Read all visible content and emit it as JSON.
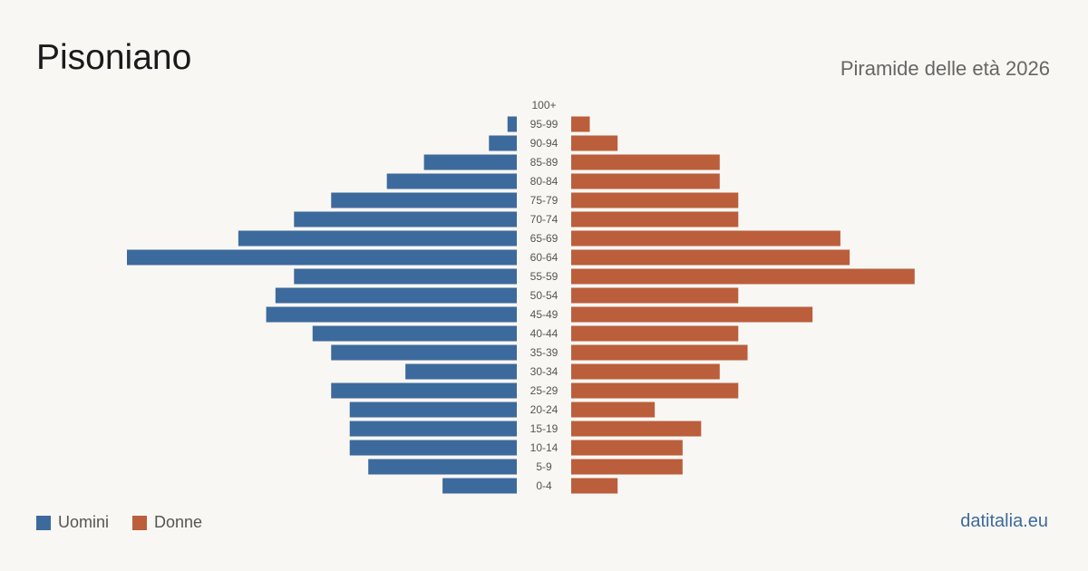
{
  "header": {
    "title": "Pisoniano",
    "subtitle": "Piramide delle età 2026"
  },
  "legend": {
    "men_label": "Uomini",
    "women_label": "Donne"
  },
  "footer": {
    "source": "datitalia.eu"
  },
  "colors": {
    "men": "#3d6a9c",
    "women": "#bb5e3c",
    "source": "#3d6a9c"
  },
  "chart_data": {
    "type": "bar",
    "orientation": "horizontal-pyramid",
    "title": "Piramide delle età 2026",
    "categories": [
      "100+",
      "95-99",
      "90-94",
      "85-89",
      "80-84",
      "75-79",
      "70-74",
      "65-69",
      "60-64",
      "55-59",
      "50-54",
      "45-49",
      "40-44",
      "35-39",
      "30-34",
      "25-29",
      "20-24",
      "15-19",
      "10-14",
      "5-9",
      "0-4"
    ],
    "series": [
      {
        "name": "Uomini",
        "values": [
          0,
          1,
          3,
          10,
          14,
          20,
          24,
          30,
          42,
          24,
          26,
          27,
          22,
          20,
          12,
          20,
          18,
          18,
          18,
          16,
          8
        ]
      },
      {
        "name": "Donne",
        "values": [
          0,
          2,
          5,
          16,
          16,
          18,
          18,
          29,
          30,
          37,
          18,
          26,
          18,
          19,
          16,
          18,
          9,
          14,
          12,
          12,
          5
        ]
      }
    ],
    "xlim": [
      0,
      42
    ],
    "legend_position": "bottom-left",
    "grid": false
  }
}
